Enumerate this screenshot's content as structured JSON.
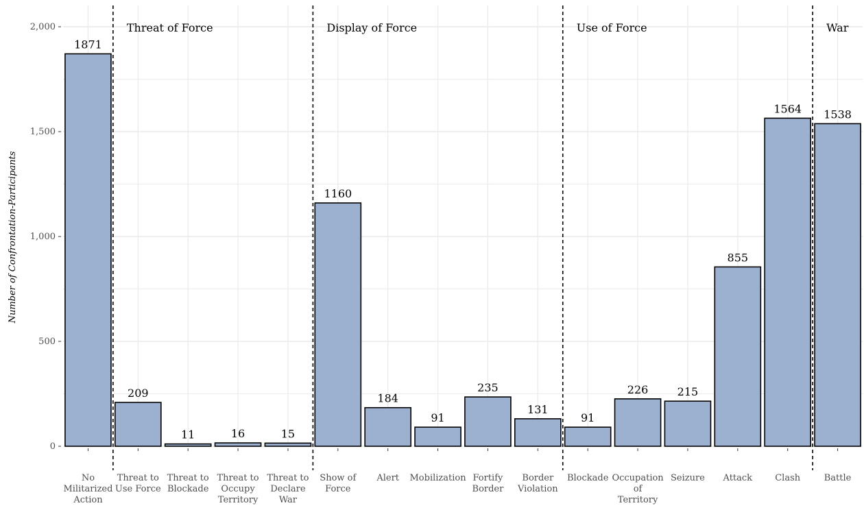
{
  "chart_data": {
    "type": "bar",
    "ylabel": "Number of Confrontation-Participants",
    "xlabel": "",
    "ylim": [
      0,
      2100
    ],
    "yticks": [
      0,
      500,
      1000,
      1500,
      2000
    ],
    "ytick_labels": [
      "0",
      "500",
      "1,000",
      "1,500",
      "2,000"
    ],
    "grid": true,
    "bar_color": "#9cb1cf",
    "bar_edge_color": "#000000",
    "categories": [
      [
        "No",
        "Militarized",
        "Action"
      ],
      [
        "Threat to",
        "Use Force"
      ],
      [
        "Threat to",
        "Blockade"
      ],
      [
        "Threat to",
        "Occupy",
        "Territory"
      ],
      [
        "Threat to",
        "Declare",
        "War"
      ],
      [
        "Show of",
        "Force"
      ],
      [
        "Alert"
      ],
      [
        "Mobilization"
      ],
      [
        "Fortify",
        "Border"
      ],
      [
        "Border",
        "Violation"
      ],
      [
        "Blockade"
      ],
      [
        "Occupation",
        "of",
        "Territory"
      ],
      [
        "Seizure"
      ],
      [
        "Attack"
      ],
      [
        "Clash"
      ],
      [
        "Battle"
      ]
    ],
    "values": [
      1871,
      209,
      11,
      16,
      15,
      1160,
      184,
      91,
      235,
      131,
      91,
      226,
      215,
      855,
      1564,
      1538
    ],
    "value_labels": [
      "1871",
      "209",
      "11",
      "16",
      "15",
      "1160",
      "184",
      "91",
      "235",
      "131",
      "91",
      "226",
      "215",
      "855",
      "1564",
      "1538"
    ],
    "groups": [
      {
        "label": "Threat of Force",
        "first_index": 1
      },
      {
        "label": "Display of Force",
        "first_index": 5
      },
      {
        "label": "Use of Force",
        "first_index": 10
      },
      {
        "label": "War",
        "first_index": 15
      }
    ]
  }
}
